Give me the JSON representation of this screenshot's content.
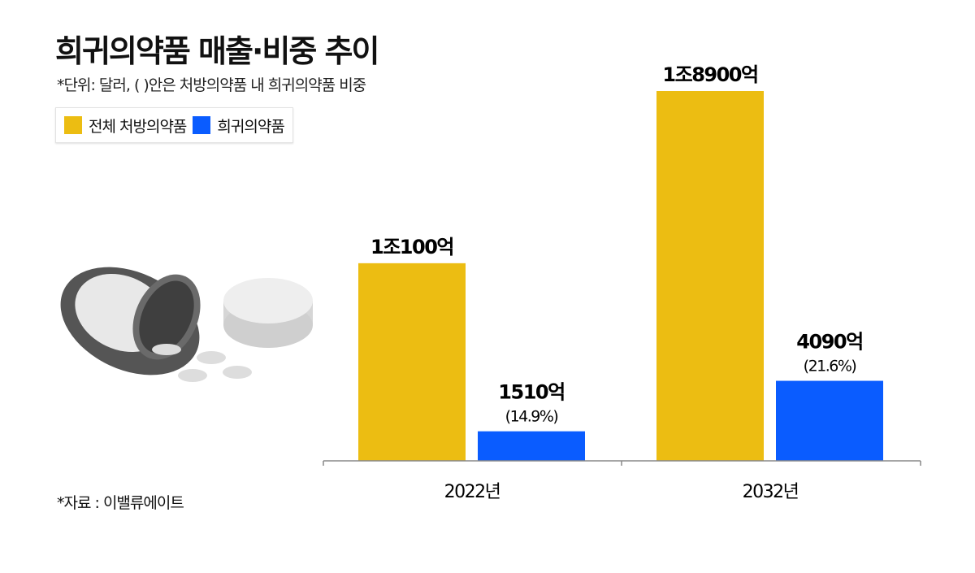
{
  "chart_data": {
    "type": "bar",
    "title": "희귀의약품 매출·비중 추이",
    "subtitle": "*단위: 달러, ( )안은 처방의약품 내 희귀의약품 비중",
    "categories": [
      "2022년",
      "2032년"
    ],
    "unit": "억 달러",
    "series": [
      {
        "name": "전체 처방의약품",
        "color": "#ecbd12",
        "values": [
          10100,
          18900
        ],
        "labels": [
          "1조100억",
          "1조8900억"
        ],
        "shares": [
          null,
          null
        ]
      },
      {
        "name": "희귀의약품",
        "color": "#0a5cff",
        "values": [
          1510,
          4090
        ],
        "labels": [
          "1510억",
          "4090억"
        ],
        "shares": [
          "(14.9%)",
          "(21.6%)"
        ]
      }
    ],
    "legend": "top-left",
    "grid": false,
    "ylim": [
      0,
      18900
    ]
  },
  "source": "*자료 : 이밸류에이트",
  "illustration": "pill-bottle-icon"
}
